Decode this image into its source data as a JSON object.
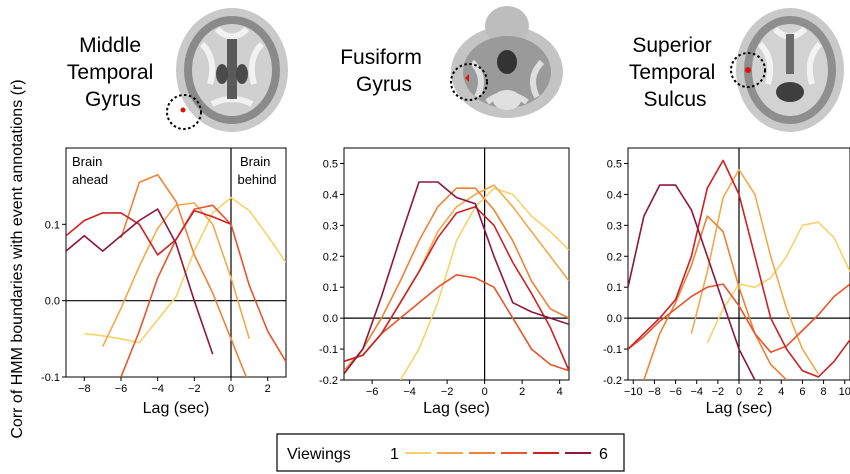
{
  "ylabel": "Corr of HMM boundaries with event annotations (r)",
  "legend": {
    "title": "Viewings",
    "first_label": "1",
    "last_label": "6",
    "colors": [
      "#f7d26a",
      "#f4a849",
      "#ee8237",
      "#e6552e",
      "#cc2224",
      "#8c1640"
    ],
    "placement": "bottom-center"
  },
  "chart_data": [
    {
      "type": "line",
      "title_lines": [
        "Middle",
        "Temporal",
        "Gyrus"
      ],
      "xlabel": "Lag (sec)",
      "xlim": [
        -9,
        3
      ],
      "ylim": [
        -0.1,
        0.2
      ],
      "xticks": [
        -8,
        -6,
        -4,
        -2,
        0,
        2
      ],
      "yticks": [
        -0.1,
        0.0,
        0.1
      ],
      "yticklabels": [
        "-0.1",
        "0.0",
        "0.1"
      ],
      "annotations": {
        "left": [
          "Brain",
          "ahead"
        ],
        "right": [
          "Brain",
          "behind"
        ]
      },
      "x": [
        -9,
        -8,
        -7,
        -6,
        -5,
        -4,
        -3,
        -2,
        -1,
        0,
        1,
        2,
        3
      ],
      "series": [
        {
          "values": [
            null,
            -0.043,
            -0.046,
            -0.05,
            -0.055,
            -0.025,
            0.005,
            0.065,
            0.115,
            0.135,
            0.118,
            0.085,
            0.05
          ]
        },
        {
          "values": [
            null,
            null,
            -0.06,
            -0.01,
            0.045,
            0.095,
            0.125,
            0.128,
            0.1,
            0.03,
            -0.05,
            null,
            null
          ]
        },
        {
          "values": [
            null,
            null,
            null,
            0.082,
            0.155,
            0.165,
            0.13,
            0.06,
            0.01,
            -0.05,
            -0.11,
            null,
            null
          ]
        },
        {
          "values": [
            null,
            null,
            null,
            -0.1,
            -0.04,
            0.03,
            0.08,
            0.12,
            0.125,
            0.1,
            0.02,
            -0.04,
            -0.08
          ]
        },
        {
          "values": [
            0.085,
            0.105,
            0.115,
            0.115,
            0.1,
            0.06,
            0.08,
            0.118,
            0.11,
            0.1,
            null,
            null,
            null
          ]
        },
        {
          "values": [
            0.065,
            0.085,
            0.065,
            0.085,
            0.105,
            0.12,
            0.075,
            0.0,
            -0.07,
            null,
            null,
            null,
            null
          ]
        }
      ]
    },
    {
      "type": "line",
      "title_lines": [
        "Fusiform",
        "Gyrus"
      ],
      "xlabel": "Lag (sec)",
      "xlim": [
        -7.5,
        4.5
      ],
      "ylim": [
        -0.2,
        0.55
      ],
      "xticks": [
        -6,
        -4,
        -2,
        0,
        2,
        4
      ],
      "yticks": [
        -0.2,
        -0.1,
        0.0,
        0.1,
        0.2,
        0.3,
        0.4,
        0.5
      ],
      "yticklabels": [
        "-0.2",
        "-0.1",
        "0.0",
        "0.1",
        "0.2",
        "0.3",
        "0.4",
        "0.5"
      ],
      "x": [
        -7.5,
        -6.5,
        -5.5,
        -4.5,
        -3.5,
        -2.5,
        -1.5,
        -0.5,
        0.5,
        1.5,
        2.5,
        3.5,
        4.5
      ],
      "series": [
        {
          "values": [
            null,
            null,
            null,
            -0.2,
            -0.1,
            0.05,
            0.25,
            0.36,
            0.42,
            0.4,
            0.33,
            0.28,
            0.22
          ]
        },
        {
          "values": [
            null,
            -0.12,
            -0.05,
            0.05,
            0.15,
            0.28,
            0.36,
            0.4,
            0.43,
            0.36,
            0.28,
            0.2,
            0.12
          ]
        },
        {
          "values": [
            -0.17,
            -0.1,
            0.0,
            0.12,
            0.25,
            0.36,
            0.42,
            0.42,
            0.35,
            0.25,
            0.12,
            0.03,
            0.0
          ]
        },
        {
          "values": [
            -0.14,
            -0.12,
            -0.05,
            0.0,
            0.05,
            0.1,
            0.14,
            0.13,
            0.1,
            0.0,
            -0.1,
            -0.15,
            -0.17
          ]
        },
        {
          "values": [
            -0.14,
            -0.12,
            -0.05,
            0.05,
            0.15,
            0.26,
            0.34,
            0.36,
            0.3,
            0.18,
            0.08,
            -0.03,
            -0.17
          ]
        },
        {
          "values": [
            -0.18,
            -0.1,
            0.07,
            0.26,
            0.44,
            0.44,
            0.39,
            0.37,
            0.2,
            0.05,
            0.02,
            0.0,
            -0.02
          ]
        }
      ]
    },
    {
      "type": "line",
      "title_lines": [
        "Superior",
        "Temporal",
        "Sulcus"
      ],
      "xlabel": "Lag (sec)",
      "xlim": [
        -10.5,
        10.5
      ],
      "ylim": [
        -0.2,
        0.55
      ],
      "xticks": [
        -10,
        -8,
        -6,
        -4,
        -2,
        0,
        2,
        4,
        6,
        8,
        10
      ],
      "yticks": [
        -0.2,
        -0.1,
        0.0,
        0.1,
        0.2,
        0.3,
        0.4,
        0.5
      ],
      "yticklabels": [
        "-0.2",
        "-0.1",
        "0.0",
        "0.1",
        "0.2",
        "0.3",
        "0.4",
        "0.5"
      ],
      "x": [
        -10.5,
        -9,
        -7.5,
        -6,
        -4.5,
        -3,
        -1.5,
        0,
        1.5,
        3,
        4.5,
        6,
        7.5,
        9,
        10.5
      ],
      "series": [
        {
          "values": [
            null,
            null,
            null,
            null,
            null,
            -0.08,
            0.03,
            0.11,
            0.1,
            0.13,
            0.2,
            0.3,
            0.31,
            0.26,
            0.15
          ]
        },
        {
          "values": [
            null,
            null,
            null,
            null,
            -0.05,
            0.15,
            0.39,
            0.48,
            0.4,
            0.2,
            0.03,
            -0.1,
            -0.18,
            null,
            null
          ]
        },
        {
          "values": [
            null,
            -0.2,
            -0.05,
            0.05,
            0.17,
            0.33,
            0.28,
            0.1,
            -0.05,
            -0.15,
            -0.2,
            null,
            null,
            null,
            null
          ]
        },
        {
          "values": [
            -0.1,
            -0.06,
            -0.01,
            0.03,
            0.07,
            0.1,
            0.11,
            0.04,
            -0.05,
            -0.11,
            -0.09,
            -0.04,
            0.01,
            0.07,
            0.11
          ]
        },
        {
          "values": [
            -0.1,
            -0.05,
            0.0,
            0.06,
            0.2,
            0.42,
            0.51,
            0.4,
            0.2,
            0.0,
            -0.1,
            -0.17,
            -0.19,
            -0.14,
            -0.07
          ]
        },
        {
          "values": [
            0.1,
            0.33,
            0.43,
            0.43,
            0.35,
            0.2,
            0.05,
            -0.1,
            -0.2,
            null,
            null,
            null,
            null,
            null,
            null
          ]
        }
      ]
    }
  ]
}
